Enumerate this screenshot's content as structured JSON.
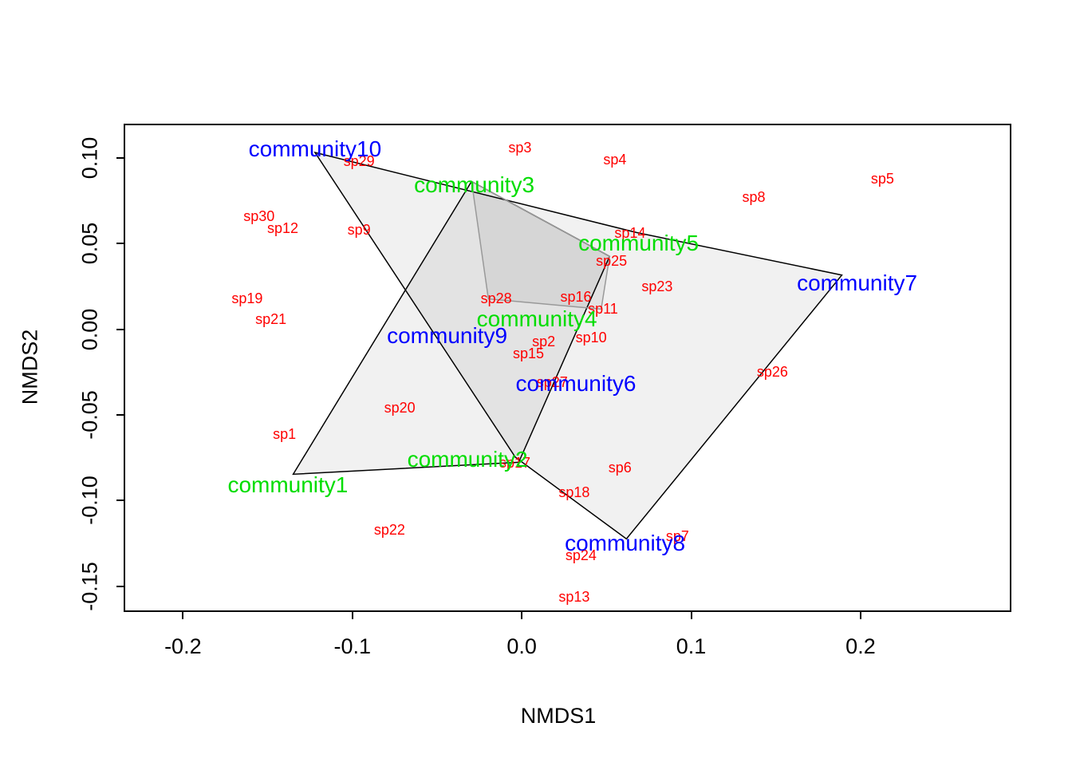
{
  "chart_data": {
    "type": "scatter",
    "title": "",
    "xlabel": "NMDS1",
    "ylabel": "NMDS2",
    "xlim": [
      -0.235,
      0.289
    ],
    "ylim": [
      -0.165,
      0.12
    ],
    "grid": false,
    "legend": "none",
    "x_ticks": [
      -0.2,
      -0.1,
      0.0,
      0.1,
      0.2
    ],
    "x_tick_labels": [
      "-0.2",
      "-0.1",
      "0.0",
      "0.1",
      "0.2"
    ],
    "y_ticks": [
      0.1,
      0.05,
      0.0,
      -0.05,
      -0.1,
      -0.15
    ],
    "y_tick_labels": [
      "0.10",
      "0.05",
      "0.00",
      "-0.05",
      "-0.10",
      "-0.15"
    ],
    "colors": {
      "species": "#FF0000",
      "green": "#00DD00",
      "blue": "#0000FF",
      "hull_fill": "rgba(0,0,0,0.055)",
      "hull_stroke_black": "#000000",
      "hull_stroke_gray": "#999999"
    },
    "species": [
      {
        "label": "sp29",
        "x": -0.097,
        "y": 0.099
      },
      {
        "label": "sp3",
        "x": -0.002,
        "y": 0.107
      },
      {
        "label": "sp4",
        "x": 0.054,
        "y": 0.1
      },
      {
        "label": "sp5",
        "x": 0.212,
        "y": 0.089
      },
      {
        "label": "sp8",
        "x": 0.136,
        "y": 0.078
      },
      {
        "label": "sp30",
        "x": -0.156,
        "y": 0.067
      },
      {
        "label": "sp12",
        "x": -0.142,
        "y": 0.06
      },
      {
        "label": "sp9",
        "x": -0.097,
        "y": 0.059
      },
      {
        "label": "sp14",
        "x": 0.063,
        "y": 0.057
      },
      {
        "label": "sp25",
        "x": 0.052,
        "y": 0.041
      },
      {
        "label": "sp23",
        "x": 0.079,
        "y": 0.026
      },
      {
        "label": "sp19",
        "x": -0.163,
        "y": 0.019
      },
      {
        "label": "sp21",
        "x": -0.149,
        "y": 0.007
      },
      {
        "label": "sp28",
        "x": -0.016,
        "y": 0.019
      },
      {
        "label": "sp16",
        "x": 0.031,
        "y": 0.02
      },
      {
        "label": "sp11",
        "x": 0.047,
        "y": 0.013
      },
      {
        "label": "sp2",
        "x": 0.012,
        "y": -0.006
      },
      {
        "label": "sp10",
        "x": 0.04,
        "y": -0.004
      },
      {
        "label": "sp15",
        "x": 0.003,
        "y": -0.013
      },
      {
        "label": "sp26",
        "x": 0.147,
        "y": -0.024
      },
      {
        "label": "sp27",
        "x": 0.017,
        "y": -0.03
      },
      {
        "label": "sp20",
        "x": -0.073,
        "y": -0.045
      },
      {
        "label": "sp1",
        "x": -0.141,
        "y": -0.06
      },
      {
        "label": "sp17",
        "x": -0.005,
        "y": -0.077
      },
      {
        "label": "sp6",
        "x": 0.057,
        "y": -0.08
      },
      {
        "label": "sp18",
        "x": 0.03,
        "y": -0.094
      },
      {
        "label": "sp22",
        "x": -0.079,
        "y": -0.116
      },
      {
        "label": "sp7",
        "x": 0.091,
        "y": -0.12
      },
      {
        "label": "sp24",
        "x": 0.034,
        "y": -0.131
      },
      {
        "label": "sp13",
        "x": 0.03,
        "y": -0.155
      }
    ],
    "communities": [
      {
        "label": "community10",
        "x": -0.123,
        "y": 0.106,
        "color": "blue"
      },
      {
        "label": "community3",
        "x": -0.029,
        "y": 0.085,
        "color": "green"
      },
      {
        "label": "community5",
        "x": 0.068,
        "y": 0.051,
        "color": "green"
      },
      {
        "label": "community7",
        "x": 0.197,
        "y": 0.028,
        "color": "blue"
      },
      {
        "label": "community4",
        "x": 0.008,
        "y": 0.007,
        "color": "green"
      },
      {
        "label": "community9",
        "x": -0.045,
        "y": -0.003,
        "color": "blue"
      },
      {
        "label": "community6",
        "x": 0.031,
        "y": -0.031,
        "color": "blue"
      },
      {
        "label": "community2",
        "x": -0.033,
        "y": -0.075,
        "color": "green"
      },
      {
        "label": "community1",
        "x": -0.139,
        "y": -0.09,
        "color": "green"
      },
      {
        "label": "community8",
        "x": 0.06,
        "y": -0.124,
        "color": "blue"
      }
    ],
    "hulls": [
      {
        "name": "hull-large",
        "stroke": "#000000",
        "points": [
          [
            -0.123,
            0.104
          ],
          [
            0.068,
            0.057
          ],
          [
            0.19,
            0.032
          ],
          [
            0.062,
            -0.123
          ],
          [
            -0.004,
            -0.075
          ]
        ]
      },
      {
        "name": "hull-left",
        "stroke": "#000000",
        "points": [
          [
            -0.136,
            -0.085
          ],
          [
            -0.03,
            0.087
          ],
          [
            0.052,
            0.043
          ],
          [
            -0.002,
            -0.078
          ]
        ]
      },
      {
        "name": "hull-gray",
        "stroke": "#999999",
        "points": [
          [
            -0.03,
            0.087
          ],
          [
            0.052,
            0.043
          ],
          [
            0.047,
            0.012
          ],
          [
            -0.02,
            0.018
          ]
        ]
      }
    ]
  }
}
